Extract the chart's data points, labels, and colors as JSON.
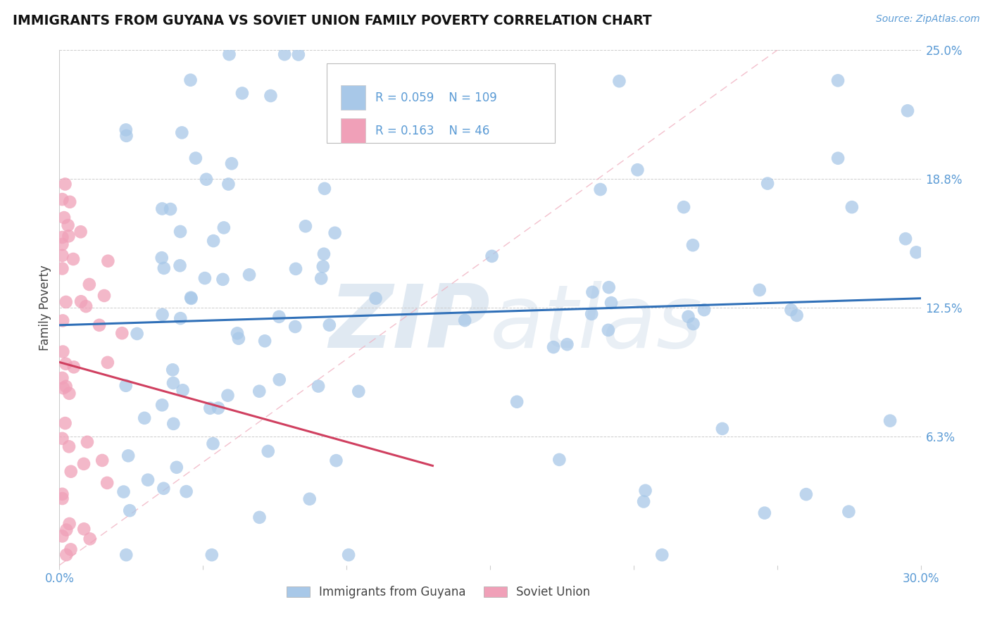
{
  "title": "IMMIGRANTS FROM GUYANA VS SOVIET UNION FAMILY POVERTY CORRELATION CHART",
  "source": "Source: ZipAtlas.com",
  "ylabel": "Family Poverty",
  "watermark": "ZIPatlas",
  "xlim": [
    0.0,
    0.3
  ],
  "ylim": [
    0.0,
    0.25
  ],
  "ytick_positions": [
    0.0,
    0.0625,
    0.125,
    0.1875,
    0.25
  ],
  "ytick_labels": [
    "",
    "6.3%",
    "12.5%",
    "18.8%",
    "25.0%"
  ],
  "guyana_R": 0.059,
  "guyana_N": 109,
  "soviet_R": 0.163,
  "soviet_N": 46,
  "guyana_color": "#a8c8e8",
  "soviet_color": "#f0a0b8",
  "guyana_trend_color": "#3070b8",
  "soviet_trend_color": "#d04060",
  "diag_color": "#f0b0c0",
  "legend_labels": [
    "Immigrants from Guyana",
    "Soviet Union"
  ],
  "background_color": "#ffffff",
  "tick_color": "#5b9bd5",
  "grid_color": "#cccccc",
  "watermark_color": "#dde8f4"
}
